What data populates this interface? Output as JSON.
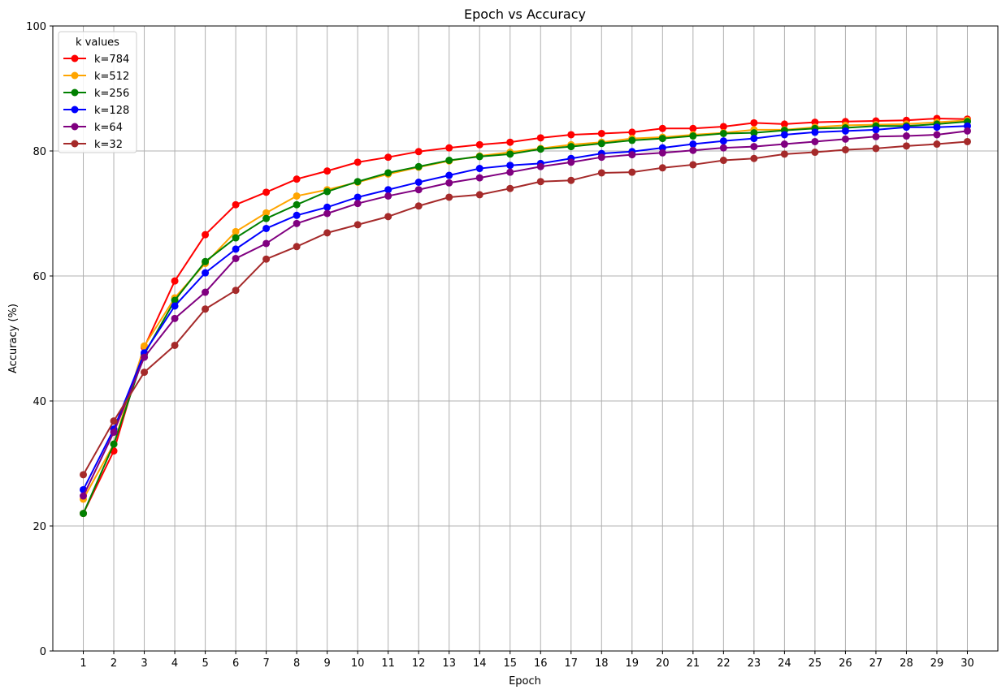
{
  "chart_data": {
    "type": "line",
    "title": "Epoch vs Accuracy",
    "xlabel": "Epoch",
    "ylabel": "Accuracy (%)",
    "x": [
      1,
      2,
      3,
      4,
      5,
      6,
      7,
      8,
      9,
      10,
      11,
      12,
      13,
      14,
      15,
      16,
      17,
      18,
      19,
      20,
      21,
      22,
      23,
      24,
      25,
      26,
      27,
      28,
      29,
      30
    ],
    "xlim": [
      0,
      31
    ],
    "ylim": [
      0,
      100
    ],
    "yticks": [
      0,
      20,
      40,
      60,
      80,
      100
    ],
    "grid": true,
    "legend": {
      "title": "k values",
      "placement": "top-left"
    },
    "series": [
      {
        "name": "k=784",
        "color": "#ff0000",
        "values": [
          22.0,
          32.0,
          48.6,
          59.2,
          66.6,
          71.4,
          73.4,
          75.5,
          76.8,
          78.2,
          79.0,
          79.9,
          80.5,
          81.0,
          81.4,
          82.1,
          82.6,
          82.8,
          83.0,
          83.6,
          83.6,
          83.9,
          84.5,
          84.3,
          84.6,
          84.7,
          84.8,
          84.9,
          85.2,
          85.1
        ]
      },
      {
        "name": "k=512",
        "color": "#ffa500",
        "values": [
          24.3,
          33.1,
          48.8,
          56.5,
          62.0,
          67.1,
          70.1,
          72.8,
          73.8,
          75.0,
          76.3,
          77.4,
          78.4,
          79.2,
          79.8,
          80.4,
          81.0,
          81.4,
          82.0,
          82.2,
          82.6,
          82.9,
          83.4,
          83.4,
          83.8,
          84.1,
          84.2,
          84.3,
          84.6,
          84.9
        ]
      },
      {
        "name": "k=256",
        "color": "#008000",
        "values": [
          22.0,
          33.1,
          47.5,
          56.1,
          62.3,
          66.1,
          69.2,
          71.4,
          73.5,
          75.1,
          76.5,
          77.5,
          78.5,
          79.1,
          79.5,
          80.3,
          80.7,
          81.2,
          81.7,
          82.0,
          82.4,
          82.8,
          82.9,
          83.3,
          83.6,
          83.7,
          84.0,
          84.0,
          84.3,
          84.7
        ]
      },
      {
        "name": "k=128",
        "color": "#0000ff",
        "values": [
          25.8,
          35.5,
          47.7,
          55.2,
          60.5,
          64.3,
          67.6,
          69.7,
          71.0,
          72.6,
          73.8,
          75.0,
          76.1,
          77.2,
          77.7,
          78.0,
          78.8,
          79.6,
          79.9,
          80.5,
          81.1,
          81.6,
          82.0,
          82.6,
          83.0,
          83.2,
          83.4,
          83.8,
          83.8,
          84.0
        ]
      },
      {
        "name": "k=64",
        "color": "#800080",
        "values": [
          24.8,
          35.0,
          47.0,
          53.2,
          57.4,
          62.8,
          65.2,
          68.4,
          70.0,
          71.6,
          72.8,
          73.8,
          74.9,
          75.7,
          76.6,
          77.5,
          78.2,
          79.0,
          79.4,
          79.7,
          80.1,
          80.5,
          80.7,
          81.1,
          81.5,
          81.9,
          82.3,
          82.4,
          82.6,
          83.2
        ]
      },
      {
        "name": "k=32",
        "color": "#a52a2a",
        "values": [
          28.2,
          36.8,
          44.6,
          48.9,
          54.7,
          57.7,
          62.7,
          64.7,
          66.9,
          68.2,
          69.5,
          71.2,
          72.6,
          73.0,
          74.0,
          75.1,
          75.3,
          76.5,
          76.6,
          77.3,
          77.8,
          78.5,
          78.8,
          79.5,
          79.8,
          80.2,
          80.4,
          80.8,
          81.1,
          81.5
        ]
      }
    ]
  }
}
